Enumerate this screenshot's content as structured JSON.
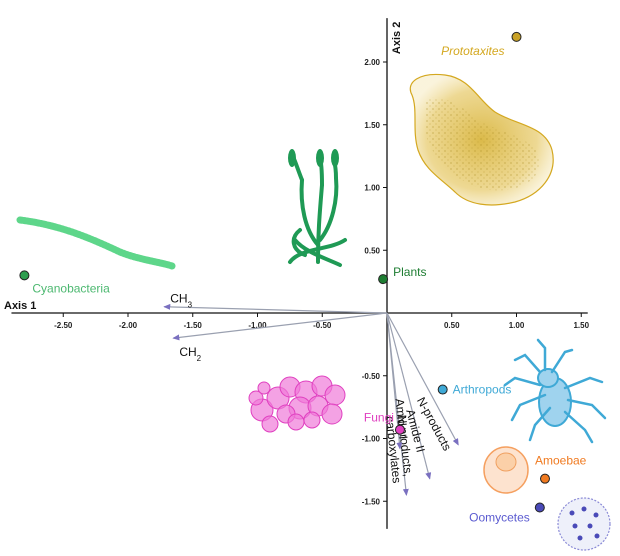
{
  "chart_data": {
    "type": "scatter",
    "subtype": "PCA biplot",
    "axes": {
      "x": {
        "title": "Axis 1",
        "range": [
          -2.9,
          1.55
        ],
        "ticks": [
          -2.5,
          -2.0,
          -1.5,
          -1.0,
          -0.5,
          0.5,
          1.0,
          1.5
        ],
        "tick_labels": [
          "-2.50",
          "-2.00",
          "-1.50",
          "-1.00",
          "-0.50",
          "0.50",
          "1.00",
          "1.50"
        ]
      },
      "y": {
        "title": "Axis 2",
        "range": [
          -1.72,
          2.35
        ],
        "ticks": [
          2.0,
          1.5,
          1.0,
          0.5,
          -0.5,
          -1.0,
          -1.5
        ],
        "tick_labels": [
          "2.00",
          "1.50",
          "1.00",
          "0.50",
          "-0.50",
          "-1.00",
          "-1.50"
        ]
      }
    },
    "grid": false,
    "points": [
      {
        "label": "Prototaxites",
        "x": 1.0,
        "y": 2.2,
        "color": "#c9a227",
        "text_color": "#d4a820",
        "italic": true,
        "label_side": "left"
      },
      {
        "label": "Plants",
        "x": -0.03,
        "y": 0.27,
        "color": "#1e7d32",
        "text_color": "#1e7d32",
        "italic": false,
        "label_side": "right"
      },
      {
        "label": "Cyanobacteria",
        "x": -2.8,
        "y": 0.3,
        "color": "#2e9e4f",
        "text_color": "#4cb870",
        "italic": false,
        "label_side": "right"
      },
      {
        "label": "Arthropods",
        "x": 0.43,
        "y": -0.61,
        "color": "#3fa9d6",
        "text_color": "#3fa9d6",
        "italic": false,
        "label_side": "right"
      },
      {
        "label": "Fungi",
        "x": 0.1,
        "y": -0.93,
        "color": "#e040c0",
        "text_color": "#e040c0",
        "italic": false,
        "label_side": "left"
      },
      {
        "label": "Amoebae",
        "x": 1.22,
        "y": -1.32,
        "color": "#f07a20",
        "text_color": "#f07a20",
        "italic": false,
        "label_side": "above"
      },
      {
        "label": "Oomycetes",
        "x": 1.18,
        "y": -1.55,
        "color": "#4a4ab8",
        "text_color": "#5a5ad0",
        "italic": false,
        "label_side": "left"
      }
    ],
    "vectors": [
      {
        "label": "CH3",
        "label_main": "CH",
        "label_sub": "3",
        "x": -1.72,
        "y": 0.05
      },
      {
        "label": "CH2",
        "label_main": "CH",
        "label_sub": "2",
        "x": -1.65,
        "y": -0.2
      },
      {
        "label": "N-products",
        "x": 0.55,
        "y": -1.05
      },
      {
        "label": "Amide II",
        "x": 0.33,
        "y": -1.32
      },
      {
        "label": "N-products, carboxylates",
        "x": 0.15,
        "y": -1.45
      },
      {
        "label": "Amide I",
        "x": 0.1,
        "y": -1.08
      }
    ],
    "vector_color": "#9aa0b0",
    "arrowhead_color": "#7a70c0"
  }
}
